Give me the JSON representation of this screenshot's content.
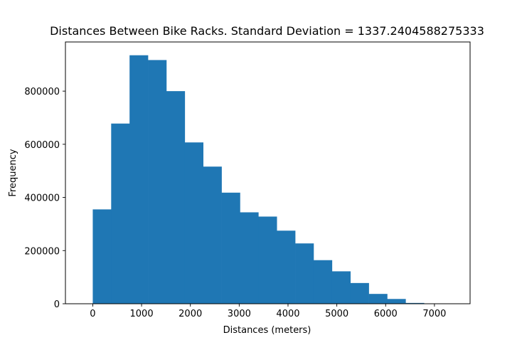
{
  "chart_data": {
    "type": "bar",
    "subtype": "histogram",
    "title": "Distances Between Bike Racks. Standard Deviation = 1337.2404588275333",
    "xlabel": "Distances (meters)",
    "ylabel": "Frequency",
    "bar_color": "#1f77b4",
    "xlim": [
      -560,
      7730
    ],
    "ylim": [
      0,
      985000
    ],
    "xticks": [
      0,
      1000,
      2000,
      3000,
      4000,
      5000,
      6000,
      7000
    ],
    "xtick_labels": [
      "0",
      "1000",
      "2000",
      "3000",
      "4000",
      "5000",
      "6000",
      "7000"
    ],
    "yticks": [
      0,
      200000,
      400000,
      600000,
      800000
    ],
    "ytick_labels": [
      "0",
      "200000",
      "400000",
      "600000",
      "800000"
    ],
    "bin_edges": [
      0,
      377,
      754,
      1131,
      1508,
      1885,
      2262,
      2639,
      3016,
      3393,
      3770,
      4147,
      4524,
      4901,
      5278,
      5655,
      6032,
      6409,
      6786,
      7163,
      7540
    ],
    "values": [
      355000,
      678000,
      935000,
      917000,
      800000,
      607000,
      516000,
      418000,
      344000,
      328000,
      275000,
      227000,
      164000,
      122000,
      78000,
      37000,
      18000,
      3000,
      500,
      200
    ],
    "grid": false,
    "legend": "none"
  }
}
